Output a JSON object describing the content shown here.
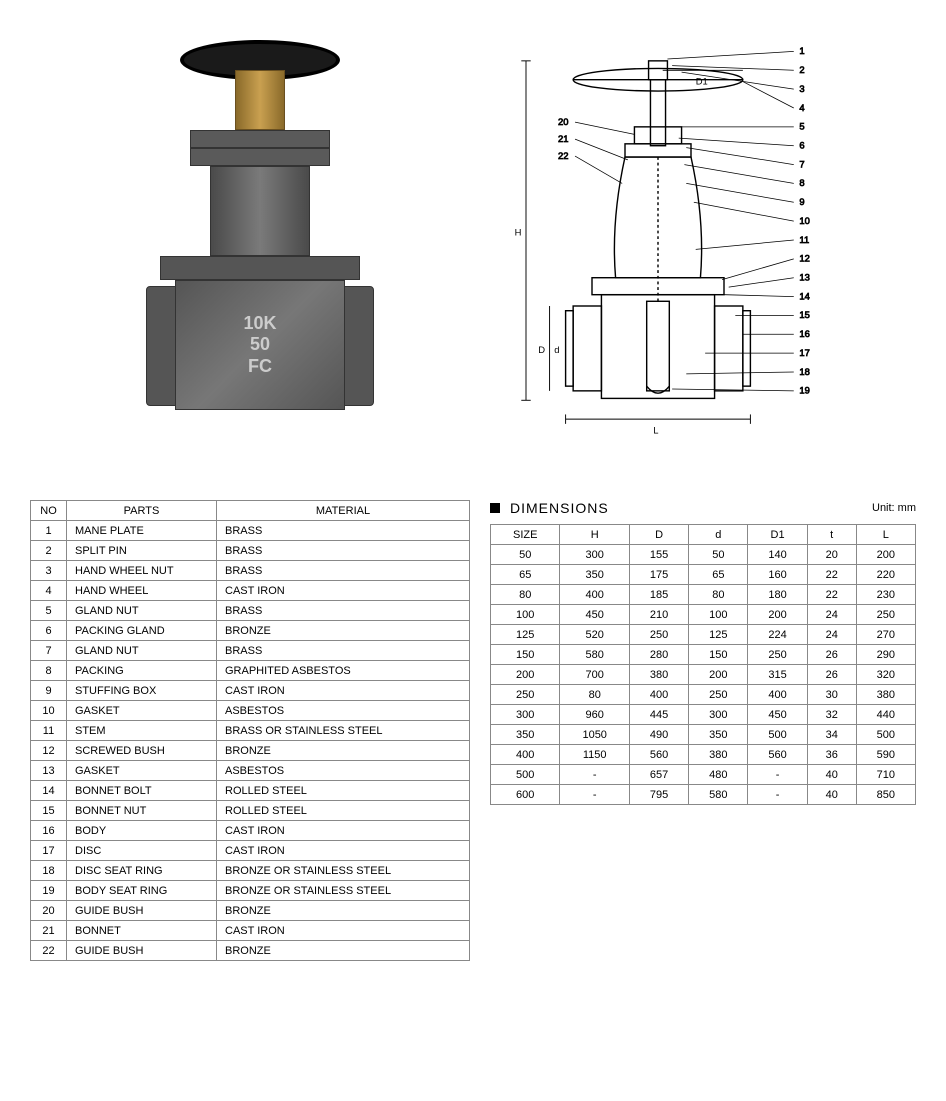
{
  "product_marking": "10K\n50\nFC",
  "parts_table": {
    "headers": [
      "NO",
      "PARTS",
      "MATERIAL"
    ],
    "rows": [
      [
        "1",
        "MANE PLATE",
        "BRASS"
      ],
      [
        "2",
        "SPLIT PIN",
        "BRASS"
      ],
      [
        "3",
        "HAND WHEEL NUT",
        "BRASS"
      ],
      [
        "4",
        "HAND WHEEL",
        "CAST IRON"
      ],
      [
        "5",
        "GLAND NUT",
        "BRASS"
      ],
      [
        "6",
        "PACKING GLAND",
        "BRONZE"
      ],
      [
        "7",
        "GLAND NUT",
        "BRASS"
      ],
      [
        "8",
        "PACKING",
        "GRAPHITED ASBESTOS"
      ],
      [
        "9",
        "STUFFING BOX",
        "CAST IRON"
      ],
      [
        "10",
        "GASKET",
        "ASBESTOS"
      ],
      [
        "11",
        "STEM",
        "BRASS OR STAINLESS STEEL"
      ],
      [
        "12",
        "SCREWED BUSH",
        "BRONZE"
      ],
      [
        "13",
        "GASKET",
        "ASBESTOS"
      ],
      [
        "14",
        "BONNET BOLT",
        "ROLLED STEEL"
      ],
      [
        "15",
        "BONNET NUT",
        "ROLLED STEEL"
      ],
      [
        "16",
        "BODY",
        "CAST IRON"
      ],
      [
        "17",
        "DISC",
        "CAST IRON"
      ],
      [
        "18",
        "DISC SEAT RING",
        "BRONZE OR STAINLESS STEEL"
      ],
      [
        "19",
        "BODY SEAT RING",
        "BRONZE OR STAINLESS STEEL"
      ],
      [
        "20",
        "GUIDE BUSH",
        "BRONZE"
      ],
      [
        "21",
        "BONNET",
        "CAST IRON"
      ],
      [
        "22",
        "GUIDE BUSH",
        "BRONZE"
      ]
    ]
  },
  "dimensions": {
    "title": "DIMENSIONS",
    "unit_label": "Unit: mm",
    "headers": [
      "SIZE",
      "H",
      "D",
      "d",
      "D1",
      "t",
      "L"
    ],
    "rows": [
      [
        "50",
        "300",
        "155",
        "50",
        "140",
        "20",
        "200"
      ],
      [
        "65",
        "350",
        "175",
        "65",
        "160",
        "22",
        "220"
      ],
      [
        "80",
        "400",
        "185",
        "80",
        "180",
        "22",
        "230"
      ],
      [
        "100",
        "450",
        "210",
        "100",
        "200",
        "24",
        "250"
      ],
      [
        "125",
        "520",
        "250",
        "125",
        "224",
        "24",
        "270"
      ],
      [
        "150",
        "580",
        "280",
        "150",
        "250",
        "26",
        "290"
      ],
      [
        "200",
        "700",
        "380",
        "200",
        "315",
        "26",
        "320"
      ],
      [
        "250",
        "80",
        "400",
        "250",
        "400",
        "30",
        "380"
      ],
      [
        "300",
        "960",
        "445",
        "300",
        "450",
        "32",
        "440"
      ],
      [
        "350",
        "1050",
        "490",
        "350",
        "500",
        "34",
        "500"
      ],
      [
        "400",
        "1150",
        "560",
        "380",
        "560",
        "36",
        "590"
      ],
      [
        "500",
        "-",
        "657",
        "480",
        "-",
        "40",
        "710"
      ],
      [
        "600",
        "-",
        "795",
        "580",
        "-",
        "40",
        "850"
      ]
    ]
  },
  "diagram": {
    "callouts_right": [
      "1",
      "2",
      "3",
      "4",
      "5",
      "6",
      "7",
      "8",
      "9",
      "10",
      "11",
      "12",
      "13",
      "14",
      "15",
      "16",
      "17",
      "18",
      "19"
    ],
    "callouts_left": [
      "20",
      "21",
      "22"
    ],
    "dim_labels": {
      "H": "H",
      "D": "D",
      "d": "d",
      "D1": "D1",
      "L": "L"
    }
  }
}
